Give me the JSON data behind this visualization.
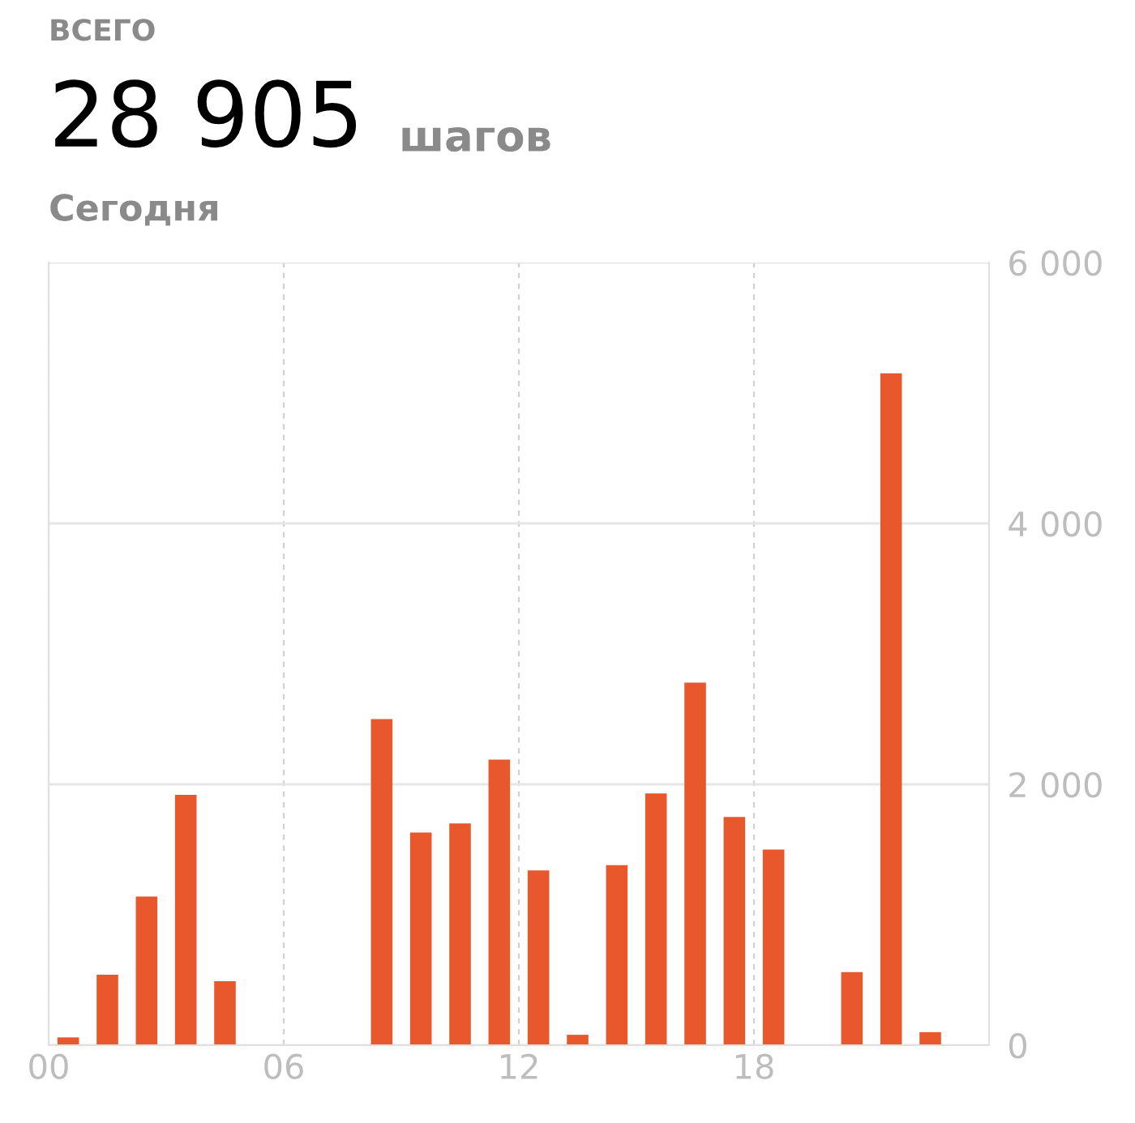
{
  "chart_data": {
    "type": "bar",
    "annotations": [
      "ВСЕГО",
      "28 905",
      "шагов",
      "Сегодня"
    ],
    "x": [
      0.5,
      1.5,
      2.5,
      3.5,
      4.5,
      5.5,
      6.5,
      7.5,
      8.5,
      9.5,
      10.5,
      11.5,
      12.5,
      13.5,
      14.5,
      15.5,
      16.5,
      17.5,
      18.5,
      19.5,
      20.5,
      21.5,
      22.5,
      23.5
    ],
    "values": [
      60,
      540,
      1140,
      1920,
      490,
      0,
      0,
      0,
      2500,
      1630,
      1700,
      2190,
      1340,
      80,
      1380,
      1930,
      2780,
      1750,
      1500,
      0,
      560,
      5150,
      100,
      0
    ],
    "color": "#e8582c",
    "xlim": [
      0,
      24
    ],
    "xticks": [
      {
        "value": 0,
        "label": "00"
      },
      {
        "value": 6,
        "label": "06"
      },
      {
        "value": 12,
        "label": "12"
      },
      {
        "value": 18,
        "label": "18"
      }
    ],
    "ylim": [
      0,
      6000
    ],
    "yticks": [
      0,
      {
        "value": 2000,
        "label": "2 000"
      },
      {
        "value": 4000,
        "label": "4 000"
      },
      {
        "value": 6000,
        "label": "6 000"
      }
    ],
    "grid": true
  }
}
